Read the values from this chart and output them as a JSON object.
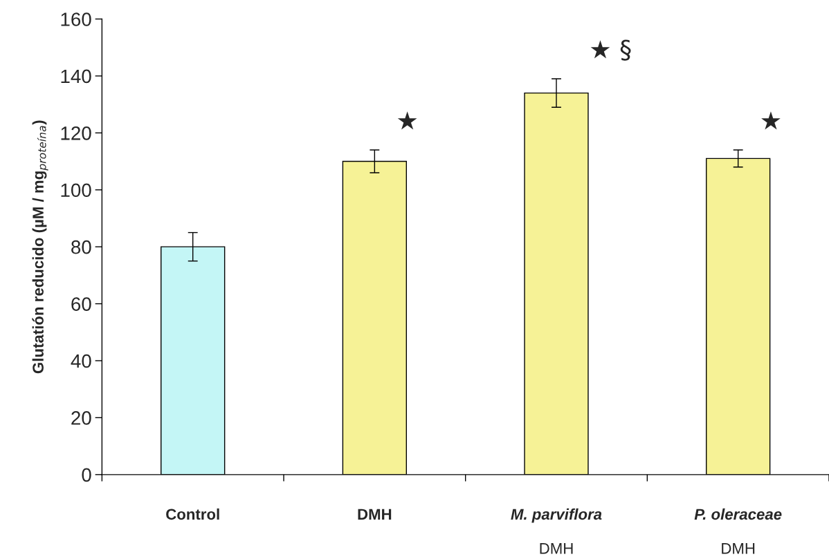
{
  "chart_data": {
    "type": "bar",
    "ylabel": "Glutatión reducido (µM / mg$_{proteína}$)",
    "categories": [
      "Control",
      "DMH",
      "M. parviflora\nDMH",
      "P. oleraceae\nDMH"
    ],
    "values": [
      80,
      110,
      134,
      111
    ],
    "errors": [
      5,
      4,
      5,
      3
    ],
    "colors": [
      "#c4f6f6",
      "#f6f296",
      "#f6f296",
      "#f6f296"
    ],
    "ylim": [
      0,
      160
    ],
    "yticks": [
      0,
      20,
      40,
      60,
      80,
      100,
      120,
      140,
      160
    ],
    "grid": false,
    "legend": false,
    "annotations": [
      "★",
      "★ §",
      "★"
    ]
  }
}
